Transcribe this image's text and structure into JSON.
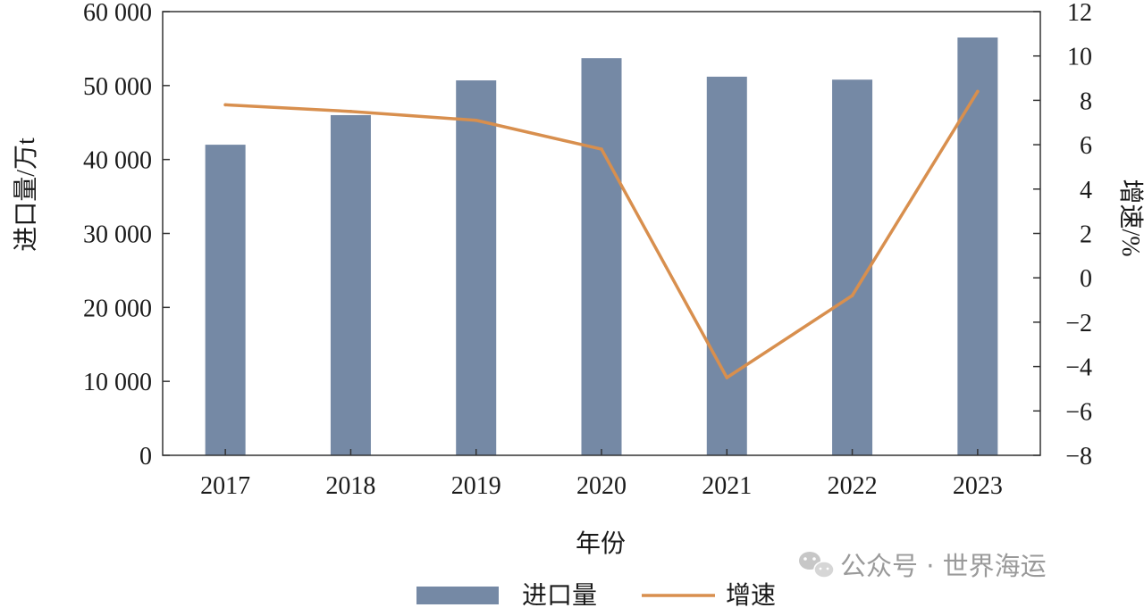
{
  "chart_data": {
    "type": "bar",
    "categories": [
      "2017",
      "2018",
      "2019",
      "2020",
      "2021",
      "2022",
      "2023"
    ],
    "series": [
      {
        "name": "进口量",
        "type": "bar",
        "axis": "left",
        "color": "#7589a5",
        "values": [
          42000,
          46000,
          50700,
          53700,
          51200,
          50800,
          56500
        ]
      },
      {
        "name": "增速",
        "type": "line",
        "axis": "right",
        "color": "#d88f4e",
        "values": [
          7.8,
          7.5,
          7.1,
          5.8,
          -4.5,
          -0.8,
          8.4
        ]
      }
    ],
    "xlabel": "年份",
    "ylabel": "进口量/万t",
    "y2label": "增速/%",
    "ylim": [
      0,
      60000
    ],
    "y2lim": [
      -8,
      12
    ],
    "yticks": [
      "0",
      "10 000",
      "20 000",
      "30 000",
      "40 000",
      "50 000",
      "60 000"
    ],
    "y2ticks": [
      "−8",
      "−6",
      "−4",
      "−2",
      "0",
      "2",
      "4",
      "6",
      "8",
      "10",
      "12"
    ],
    "legend_position": "bottom-center",
    "grid": false
  },
  "watermark": {
    "icon": "wechat-icon",
    "text": "公众号 · 世界海运"
  }
}
